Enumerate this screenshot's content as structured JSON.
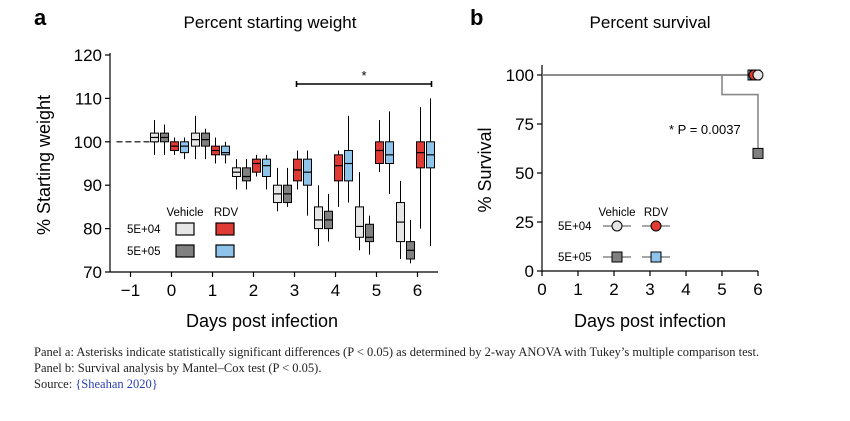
{
  "panel_a": {
    "label": "a",
    "title": "Percent starting weight",
    "xlabel": "Days post infection",
    "ylabel": "% Starting weight",
    "significance": "*",
    "legend": {
      "col1": "Vehicle",
      "col2": "RDV",
      "row1": "5E+04",
      "row2": "5E+05"
    }
  },
  "panel_b": {
    "label": "b",
    "title": "Percent survival",
    "xlabel": "Days post infection",
    "ylabel": "% Survival",
    "annotation": "* P = 0.0037",
    "legend": {
      "col1": "Vehicle",
      "col2": "RDV",
      "row1": "5E+04",
      "row2": "5E+05"
    }
  },
  "colors": {
    "vehicle_low": "#e6e6e6",
    "vehicle_high": "#808080",
    "rdv_low": "#e03a35",
    "rdv_high": "#8fc4ea"
  },
  "chart_data": [
    {
      "type": "box",
      "title": "Percent starting weight",
      "xlabel": "Days post infection",
      "ylabel": "% Starting weight",
      "xlim": [
        -1.5,
        6.5
      ],
      "ylim": [
        70,
        120
      ],
      "x_ticks": [
        "−1",
        "0",
        "1",
        "2",
        "3",
        "4",
        "5",
        "6"
      ],
      "y_ticks": [
        70,
        80,
        90,
        100,
        110,
        120
      ],
      "baseline": 100,
      "significance_bracket": {
        "from_day": 3,
        "to_day": 6,
        "label": "*"
      },
      "series": [
        {
          "name": "Vehicle 5E+04",
          "color_key": "vehicle_low",
          "boxes": [
            [
              0,
              97,
              100,
              101,
              102,
              105
            ],
            [
              1,
              96,
              99,
              100.5,
              102,
              106
            ],
            [
              2,
              89,
              92,
              93,
              94,
              96
            ],
            [
              3,
              84,
              86,
              88,
              90,
              94
            ],
            [
              4,
              76,
              80,
              82,
              85,
              90
            ],
            [
              5,
              75,
              78,
              80.5,
              85,
              93
            ],
            [
              6,
              73,
              77,
              81.5,
              86,
              91
            ]
          ]
        },
        {
          "name": "Vehicle 5E+05",
          "color_key": "vehicle_high",
          "boxes": [
            [
              0,
              97,
              100,
              101,
              102,
              104
            ],
            [
              1,
              96,
              99,
              100.5,
              102,
              103
            ],
            [
              2,
              89,
              91,
              92,
              94,
              96
            ],
            [
              3,
              85,
              86,
              88,
              90,
              94
            ],
            [
              4,
              77,
              80,
              82,
              84,
              88
            ],
            [
              5,
              74,
              77,
              78,
              81,
              83
            ],
            [
              6,
              72,
              73,
              75,
              77,
              82
            ]
          ]
        },
        {
          "name": "RDV 5E+04",
          "color_key": "rdv_low",
          "boxes": [
            [
              0,
              97,
              98,
              99,
              100,
              101
            ],
            [
              1,
              95,
              97,
              98,
              99,
              101
            ],
            [
              2,
              92,
              93,
              95,
              96,
              97
            ],
            [
              3,
              89,
              91,
              93.5,
              96,
              98
            ],
            [
              4,
              85,
              91,
              94.5,
              97,
              98
            ],
            [
              5,
              93,
              95,
              98,
              100,
              105
            ],
            [
              6,
              80,
              94,
              97.5,
              100,
              108
            ]
          ]
        },
        {
          "name": "RDV 5E+05",
          "color_key": "rdv_high",
          "boxes": [
            [
              0,
              96,
              97.5,
              99,
              100,
              101
            ],
            [
              1,
              95,
              97,
              97.5,
              99,
              100
            ],
            [
              2,
              89,
              92,
              94.5,
              96,
              97
            ],
            [
              3,
              83,
              90,
              93,
              96,
              98
            ],
            [
              4,
              86,
              91,
              95,
              98,
              106
            ],
            [
              5,
              88,
              95,
              97,
              100,
              107
            ],
            [
              6,
              76,
              94,
              97,
              100,
              110
            ]
          ]
        }
      ]
    },
    {
      "type": "line",
      "title": "Percent survival",
      "xlabel": "Days post infection",
      "ylabel": "% Survival",
      "xlim": [
        0,
        6
      ],
      "ylim": [
        0,
        100
      ],
      "x_ticks": [
        0,
        1,
        2,
        3,
        4,
        5,
        6
      ],
      "y_ticks": [
        0,
        25,
        50,
        75,
        100
      ],
      "annotation": "* P = 0.0037",
      "series": [
        {
          "name": "Vehicle 5E+04",
          "color_key": "vehicle_low",
          "steps": [
            [
              0,
              100
            ],
            [
              6,
              100
            ]
          ]
        },
        {
          "name": "RDV 5E+04",
          "color_key": "rdv_low",
          "steps": [
            [
              0,
              100
            ],
            [
              6,
              100
            ]
          ]
        },
        {
          "name": "RDV 5E+05",
          "color_key": "rdv_high",
          "steps": [
            [
              0,
              100
            ],
            [
              6,
              100
            ]
          ]
        },
        {
          "name": "Vehicle 5E+05",
          "color_key": "vehicle_high",
          "steps": [
            [
              0,
              100
            ],
            [
              5,
              100
            ],
            [
              5,
              90
            ],
            [
              6,
              90
            ],
            [
              6,
              60
            ]
          ]
        }
      ]
    }
  ],
  "caption": {
    "line1": "Panel a: Asterisks indicate statistically significant differences (P < 0.05) as determined by 2-way ANOVA with Tukey’s multiple comparison test.",
    "line2": "Panel b: Survival analysis by Mantel–Cox test (P < 0.05).",
    "source_prefix": "Source: ",
    "source_link": "{Sheahan 2020}"
  }
}
